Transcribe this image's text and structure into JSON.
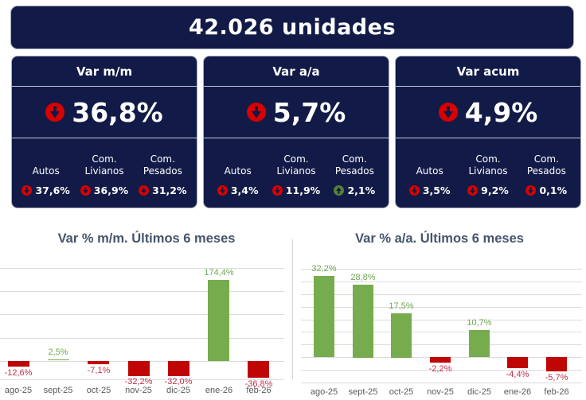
{
  "banner": {
    "title": "42.026 unidades"
  },
  "cards": [
    {
      "title": "Var m/m",
      "main": {
        "value": "36,8%",
        "direction": "down"
      },
      "breakdown": [
        {
          "label": "Autos",
          "value": "37,6%",
          "direction": "down"
        },
        {
          "label": "Com. Livianos",
          "value": "36,9%",
          "direction": "down"
        },
        {
          "label": "Com. Pesados",
          "value": "31,2%",
          "direction": "down"
        }
      ]
    },
    {
      "title": "Var a/a",
      "main": {
        "value": "5,7%",
        "direction": "down"
      },
      "breakdown": [
        {
          "label": "Autos",
          "value": "3,4%",
          "direction": "down"
        },
        {
          "label": "Com. Livianos",
          "value": "11,9%",
          "direction": "down"
        },
        {
          "label": "Com. Pesados",
          "value": "2,1%",
          "direction": "up"
        }
      ]
    },
    {
      "title": "Var acum",
      "main": {
        "value": "4,9%",
        "direction": "down"
      },
      "breakdown": [
        {
          "label": "Autos",
          "value": "3,5%",
          "direction": "down"
        },
        {
          "label": "Com. Livianos",
          "value": "9,2%",
          "direction": "down"
        },
        {
          "label": "Com. Pesados",
          "value": "0,1%",
          "direction": "down"
        }
      ]
    }
  ],
  "colors": {
    "navy": "#121A47",
    "positive_bar": "#76AC4E",
    "negative_bar": "#C00505",
    "positive_label": "#70A84F",
    "negative_label": "#C2314B",
    "icon_red": "#D90000",
    "icon_green": "#538135",
    "grid": "#DCDCDC",
    "title_text": "#44546A",
    "axis_text": "#595959"
  },
  "chart_data": [
    {
      "type": "bar",
      "title": "Var % m/m. Últimos 6 meses",
      "categories": [
        "ago-25",
        "sept-25",
        "oct-25",
        "nov-25",
        "dic-25",
        "ene-26",
        "feb-26"
      ],
      "values": [
        -12.6,
        2.5,
        -7.1,
        -32.2,
        -32.0,
        174.4,
        -36.8
      ],
      "labels": [
        "-12,6%",
        "2,5%",
        "-7,1%",
        "-32,2%",
        "-32,0%",
        "174,4%",
        "-36,8%"
      ],
      "xlabel": "",
      "ylabel": "",
      "ylim": [
        -40,
        200
      ],
      "grid_step": 50,
      "grid": true,
      "legend": false
    },
    {
      "type": "bar",
      "title": "Var % a/a. Últimos 6 meses",
      "categories": [
        "ago-25",
        "sept-25",
        "oct-25",
        "nov-25",
        "dic-25",
        "ene-26",
        "feb-26"
      ],
      "values": [
        32.2,
        28.8,
        17.5,
        -2.2,
        10.7,
        -4.4,
        -5.7
      ],
      "labels": [
        "32,2%",
        "28,8%",
        "17,5%",
        "-2,2%",
        "10,7%",
        "-4,4%",
        "-5,7%"
      ],
      "xlabel": "",
      "ylabel": "",
      "ylim": [
        -10,
        35
      ],
      "grid_step": 5,
      "grid": true,
      "legend": false
    }
  ]
}
